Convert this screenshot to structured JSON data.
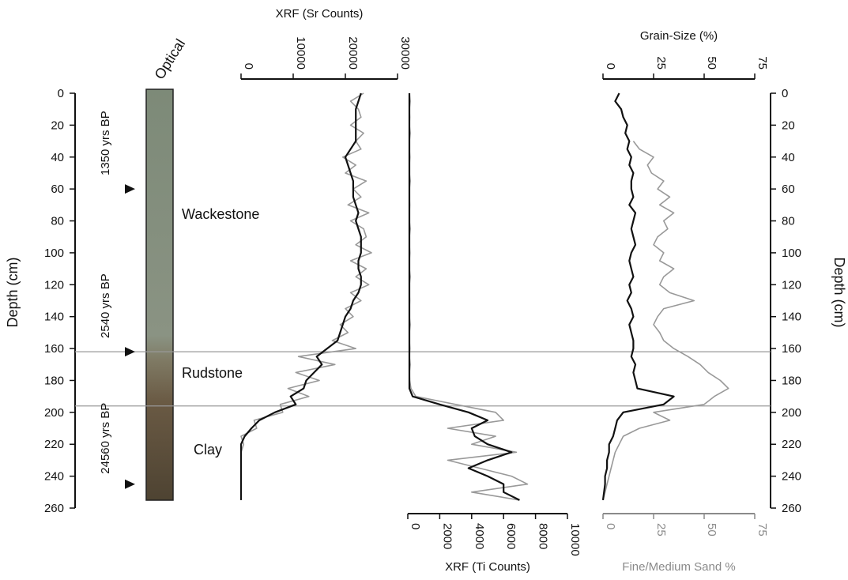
{
  "depth_axis": {
    "label": "Depth (cm)",
    "ylim": [
      0,
      260
    ],
    "yticks": [
      0,
      20,
      40,
      60,
      80,
      100,
      120,
      140,
      160,
      180,
      200,
      220,
      240,
      260
    ],
    "depth": [
      0,
      5,
      10,
      15,
      20,
      25,
      30,
      35,
      40,
      45,
      50,
      55,
      60,
      65,
      70,
      75,
      80,
      85,
      90,
      95,
      100,
      105,
      110,
      115,
      120,
      125,
      130,
      135,
      140,
      145,
      150,
      155,
      160,
      165,
      170,
      175,
      180,
      185,
      190,
      195,
      200,
      205,
      210,
      215,
      220,
      225,
      230,
      235,
      240,
      245,
      250,
      255
    ]
  },
  "core": {
    "title": "Optical",
    "units": [
      "Wackestone",
      "Rudstone",
      "Clay"
    ],
    "age_markers": [
      {
        "label": "1350 yrs BP",
        "depth": 60
      },
      {
        "label": "2540 yrs BP",
        "depth": 162
      },
      {
        "label": "24560 yrs BP",
        "depth": 245
      }
    ],
    "boundaries": [
      162,
      196
    ]
  },
  "chart_data": [
    {
      "type": "line",
      "xlabel": "XRF (Sr Counts)",
      "xaxis": "top",
      "xlim": [
        0,
        30000
      ],
      "xticks": [
        0,
        10000,
        20000,
        30000
      ],
      "series": [
        {
          "color": "#999999",
          "values": [
            23500,
            21000,
            22500,
            23000,
            21000,
            23500,
            22000,
            23000,
            19500,
            22000,
            20000,
            24000,
            21500,
            23000,
            20500,
            24500,
            21000,
            23500,
            24000,
            22000,
            25000,
            21000,
            24000,
            22000,
            24500,
            21000,
            23000,
            20000,
            21500,
            19000,
            20500,
            17500,
            22000,
            11000,
            18000,
            10500,
            15000,
            9000,
            13000,
            7500,
            8000,
            2500,
            3000,
            0,
            500,
            0,
            0,
            0,
            0,
            0,
            0,
            0
          ]
        },
        {
          "color": "#111111",
          "values": [
            23000,
            22500,
            22000,
            22000,
            22000,
            22000,
            22000,
            21000,
            20000,
            20500,
            21000,
            21500,
            21500,
            21500,
            22000,
            22500,
            22000,
            22500,
            23000,
            23000,
            23000,
            22500,
            22500,
            23000,
            23000,
            22500,
            21500,
            21000,
            20000,
            19500,
            19000,
            18500,
            16500,
            14500,
            15500,
            14000,
            12500,
            12000,
            9500,
            10500,
            6500,
            3500,
            2000,
            700,
            0,
            0,
            0,
            0,
            0,
            0,
            0,
            0
          ]
        }
      ]
    },
    {
      "type": "line",
      "xlabel": "XRF (Ti Counts)",
      "xaxis": "bottom",
      "xlim": [
        0,
        10000
      ],
      "xticks": [
        0,
        2000,
        4000,
        6000,
        8000,
        10000
      ],
      "series": [
        {
          "color": "#999999",
          "values": [
            100,
            150,
            100,
            120,
            100,
            150,
            100,
            100,
            130,
            100,
            100,
            150,
            100,
            100,
            120,
            100,
            100,
            150,
            100,
            100,
            130,
            100,
            100,
            150,
            100,
            100,
            120,
            100,
            100,
            150,
            100,
            100,
            130,
            100,
            150,
            100,
            120,
            200,
            500,
            3000,
            5500,
            6000,
            2500,
            5500,
            4000,
            6800,
            2500,
            4500,
            6500,
            7500,
            4000,
            7000
          ]
        },
        {
          "color": "#111111",
          "values": [
            100,
            100,
            100,
            100,
            100,
            100,
            100,
            100,
            100,
            100,
            100,
            100,
            100,
            100,
            100,
            100,
            100,
            100,
            100,
            100,
            100,
            100,
            100,
            100,
            100,
            100,
            100,
            100,
            100,
            100,
            100,
            100,
            100,
            100,
            100,
            100,
            100,
            100,
            300,
            2000,
            3800,
            5000,
            4000,
            4200,
            5000,
            6500,
            5000,
            3800,
            5000,
            6000,
            6000,
            7000
          ]
        }
      ]
    },
    {
      "type": "line",
      "xlabel": "Grain-Size (%)",
      "xaxis": "top",
      "xlim": [
        0,
        75
      ],
      "xticks": [
        0,
        25,
        50,
        75
      ],
      "x2label": "Fine/Medium Sand %",
      "x2lim": [
        0,
        75
      ],
      "x2ticks": [
        0,
        25,
        50,
        75
      ],
      "x2color": "#8a8a8a",
      "series": [
        {
          "color": "#999999",
          "axis": "x2",
          "values": [
            null,
            null,
            null,
            null,
            null,
            null,
            15,
            18,
            25,
            22,
            24,
            30,
            27,
            33,
            28,
            35,
            30,
            32,
            27,
            25,
            30,
            28,
            35,
            30,
            28,
            33,
            45,
            30,
            27,
            25,
            28,
            30,
            35,
            42,
            48,
            52,
            58,
            62,
            55,
            50,
            25,
            33,
            18,
            10,
            8,
            6,
            5,
            4,
            3,
            2,
            1,
            0
          ]
        },
        {
          "color": "#111111",
          "values": [
            8,
            6,
            9,
            10,
            12,
            11,
            13,
            12,
            14,
            13,
            15,
            14,
            14,
            15,
            13,
            16,
            15,
            14,
            15,
            16,
            14,
            13,
            14,
            15,
            13,
            14,
            12,
            14,
            15,
            13,
            14,
            15,
            15,
            14,
            16,
            15,
            16,
            17,
            35,
            30,
            10,
            7,
            6,
            5,
            3,
            3,
            2,
            2,
            1,
            1,
            0.5,
            0
          ]
        }
      ]
    }
  ]
}
